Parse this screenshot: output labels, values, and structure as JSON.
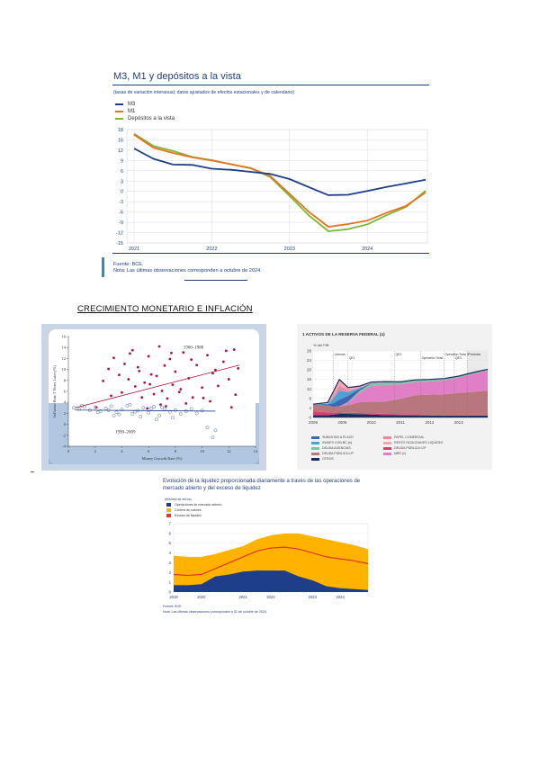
{
  "figure1": {
    "title": "M3, M1 y depósitos a la vista",
    "subtitle": "(tasas de variación interanual; datos ajustados de efectos estacionales y de calendario)",
    "legend": [
      {
        "label": "M3",
        "color": "#1f3e8a"
      },
      {
        "label": "M1",
        "color": "#e8731f"
      },
      {
        "label": "Depósitos a la vista",
        "color": "#7cb833"
      }
    ],
    "source": "Fuente: BCE.",
    "note": "Nota: Las últimas observaciones corresponden a octubre de 2024."
  },
  "section_heading": "CRECIMIENTO MONETARIO E INFLACIÓN",
  "figure2": {
    "annotation_upper": "1960–1980",
    "annotation_lower": "1990–2009"
  },
  "figure3": {
    "title": "1  ACTIVOS DE LA RESERVA FEDERAL (a)",
    "unit": "% del PIB",
    "event_labels": [
      "Lehman",
      "QE1",
      "QE2",
      "Operation Twist",
      "Operation Twist 2",
      "QE3",
      "Previsión"
    ],
    "legend": [
      {
        "label": "SUBASTAS A PLAZO",
        "color": "#3f66b0"
      },
      {
        "label": "PAPEL COMERCIAL",
        "color": "#e58aa0"
      },
      {
        "label": "SWAPS CON BC (b)",
        "color": "#4aa3d8"
      },
      {
        "label": "RESTO FACILIDADES LIQUIDEZ",
        "color": "#f1a9b7"
      },
      {
        "label": "DEUDA AGENCIAS",
        "color": "#7fc2a8"
      },
      {
        "label": "DEUDA PÚBLICA C/P",
        "color": "#d6406a"
      },
      {
        "label": "DEUDA PÚBLICA L/P",
        "color": "#b8767e"
      },
      {
        "label": "MBS (c)",
        "color": "#e07fc6"
      },
      {
        "label": "OTROS",
        "color": "#1c2b5e"
      }
    ]
  },
  "figure4": {
    "title_line1": "Evolución de la liquidez proporcionada diariamente a través de las operaciones de",
    "title_line2": "mercado abierto y del exceso de liquidez",
    "unit": "(billones de euros)",
    "legend": [
      {
        "label": "Operaciones de mercado abierto",
        "color": "#1f3e8a"
      },
      {
        "label": "Cartera de valores",
        "color": "#ffb300"
      },
      {
        "label": "Exceso de liquidez",
        "color": "#e8332a"
      }
    ],
    "source": "Fuente: BCE.",
    "note": "Nota: Las últimas observaciones corresponden a 31 de octubre de 2024."
  },
  "chart_data": [
    {
      "type": "line",
      "title": "M3, M1 y depósitos a la vista",
      "x": [
        "2021-01",
        "2021-04",
        "2021-07",
        "2021-10",
        "2022-01",
        "2022-04",
        "2022-07",
        "2022-10",
        "2023-01",
        "2023-04",
        "2023-07",
        "2023-10",
        "2024-01",
        "2024-04",
        "2024-07",
        "2024-10"
      ],
      "series": [
        {
          "name": "M3",
          "values": [
            12.5,
            9.5,
            7.8,
            7.7,
            6.6,
            6.3,
            5.7,
            5.1,
            3.6,
            1.2,
            -1.1,
            -1.0,
            0.1,
            1.3,
            2.3,
            3.4
          ]
        },
        {
          "name": "M1",
          "values": [
            16.5,
            12.7,
            11.2,
            9.9,
            9.0,
            7.9,
            6.8,
            4.5,
            -0.7,
            -6.0,
            -10.3,
            -9.5,
            -8.5,
            -6.2,
            -4.2,
            -0.3
          ]
        },
        {
          "name": "Depósitos a la vista",
          "values": [
            16.8,
            13.2,
            11.8,
            10.0,
            9.1,
            7.9,
            6.7,
            4.2,
            -1.3,
            -7.0,
            -11.6,
            -11.0,
            -9.6,
            -6.9,
            -4.5,
            0.2
          ]
        }
      ],
      "xticks": [
        "2021",
        "2022",
        "2023",
        "2024"
      ],
      "yticks": [
        18,
        15,
        12,
        9,
        6,
        3,
        0,
        -3,
        -6,
        -9,
        -12,
        -15
      ],
      "ylim": [
        -15,
        18
      ],
      "grid": true,
      "legend_position": "top-left"
    },
    {
      "type": "scatter",
      "xlabel": "Money Growth Rate (%)",
      "ylabel": "Inflation Rate 2 Years Later (%)",
      "xticks": [
        0,
        2,
        4,
        6,
        8,
        10,
        12,
        14
      ],
      "yticks": [
        -4,
        -2,
        0,
        2,
        4,
        6,
        8,
        10,
        12,
        14,
        16
      ],
      "xlim": [
        0,
        14
      ],
      "ylim": [
        -4,
        16
      ],
      "series": [
        {
          "name": "1960–1980",
          "color": "#b0123e",
          "x": [
            2.1,
            2.6,
            3.0,
            3.4,
            3.8,
            4.0,
            4.2,
            4.5,
            4.8,
            5.0,
            5.2,
            5.5,
            5.7,
            6.0,
            6.2,
            6.4,
            6.6,
            6.8,
            7.0,
            7.2,
            7.4,
            7.6,
            7.8,
            8.0,
            8.3,
            8.6,
            9.0,
            9.3,
            9.6,
            10.0,
            10.4,
            10.8,
            11.2,
            11.6,
            12.0,
            12.4,
            12.7,
            3.2,
            4.6,
            5.3,
            6.1,
            6.9,
            7.7,
            8.4,
            9.2,
            10.1,
            11.0,
            11.8,
            12.5,
            5.9,
            7.3,
            8.8,
            10.6,
            12.2
          ],
          "y": [
            3.1,
            7.9,
            10.1,
            12.1,
            9.0,
            5.8,
            11.0,
            8.2,
            13.5,
            6.9,
            10.4,
            4.9,
            7.6,
            12.4,
            9.1,
            5.5,
            8.8,
            14.2,
            6.1,
            10.7,
            4.7,
            11.9,
            7.2,
            9.6,
            5.9,
            13.1,
            8.4,
            4.9,
            10.8,
            6.7,
            12.6,
            9.3,
            7.0,
            11.4,
            8.2,
            13.6,
            10.2,
            5.2,
            12.9,
            9.7,
            7.3,
            3.6,
            13.0,
            6.4,
            11.8,
            4.8,
            9.9,
            13.4,
            5.4,
            2.9,
            3.3,
            3.8,
            4.2,
            3.1
          ]
        },
        {
          "name": "1990–2009",
          "color": "#6f8fb8",
          "x": [
            0.4,
            0.8,
            1.2,
            1.6,
            2.0,
            2.4,
            2.8,
            3.2,
            3.6,
            4.0,
            4.4,
            4.8,
            5.2,
            5.6,
            6.0,
            6.4,
            6.8,
            7.2,
            7.6,
            8.0,
            8.4,
            8.8,
            9.2,
            9.6,
            10.0,
            10.4,
            10.8,
            11.0,
            1.0,
            2.2,
            3.0,
            3.8,
            4.6,
            5.4,
            6.2,
            7.0,
            7.8,
            3.4,
            5.0,
            6.6
          ],
          "y": [
            3.0,
            2.8,
            3.2,
            2.6,
            3.1,
            2.4,
            2.9,
            3.3,
            2.2,
            2.7,
            3.4,
            1.9,
            2.5,
            3.0,
            2.1,
            3.2,
            1.6,
            2.8,
            2.3,
            2.6,
            1.9,
            2.4,
            2.8,
            2.0,
            2.5,
            -0.6,
            -2.4,
            -1.1,
            3.4,
            2.2,
            2.6,
            1.8,
            3.6,
            1.4,
            2.9,
            3.1,
            1.2,
            1.6,
            2.3,
            0.9
          ]
        }
      ]
    },
    {
      "type": "area",
      "title": "1  ACTIVOS DE LA RESERVA FEDERAL (a)",
      "ylabel": "% del PIB",
      "x": [
        2008.0,
        2008.5,
        2008.7,
        2008.9,
        2009.2,
        2009.6,
        2010.0,
        2010.5,
        2011.0,
        2011.5,
        2012.0,
        2012.5,
        2013.0,
        2013.5,
        2014.0
      ],
      "xticks": [
        "2008",
        "2009",
        "2010",
        "2011",
        "2012",
        "2013"
      ],
      "yticks": [
        0,
        4,
        8,
        12,
        16,
        20,
        24,
        28
      ],
      "ylim": [
        0,
        28
      ],
      "series": [
        {
          "name": "OTROS",
          "values": [
            1.0,
            1.0,
            1.2,
            1.5,
            1.5,
            1.4,
            1.2,
            1.0,
            0.9,
            0.9,
            0.8,
            0.8,
            0.8,
            0.8,
            0.8
          ]
        },
        {
          "name": "DEUDA PÚBLICA C/P",
          "values": [
            1.5,
            1.2,
            0.8,
            0.6,
            0.5,
            0.5,
            0.5,
            0.5,
            0.5,
            0.5,
            0.3,
            0.0,
            0.0,
            0.0,
            0.0
          ]
        },
        {
          "name": "DEUDA PÚBLICA L/P",
          "values": [
            3.0,
            2.8,
            2.5,
            2.5,
            3.2,
            4.5,
            5.0,
            5.2,
            6.5,
            8.0,
            8.5,
            9.0,
            9.5,
            10.0,
            10.5
          ]
        },
        {
          "name": "MBS (c)",
          "values": [
            0.0,
            0.0,
            0.0,
            0.0,
            1.0,
            4.0,
            6.5,
            7.0,
            6.0,
            5.5,
            5.5,
            5.8,
            6.5,
            7.5,
            8.5
          ]
        },
        {
          "name": "DEUDA AGENCIAS",
          "values": [
            0.0,
            0.0,
            0.0,
            0.1,
            0.4,
            0.9,
            1.1,
            1.1,
            0.9,
            0.8,
            0.7,
            0.6,
            0.5,
            0.5,
            0.4
          ]
        },
        {
          "name": "SUBASTAS A PLAZO",
          "values": [
            0.0,
            0.5,
            1.5,
            2.8,
            2.5,
            0.8,
            0.1,
            0.0,
            0.0,
            0.0,
            0.0,
            0.0,
            0.0,
            0.0,
            0.0
          ]
        },
        {
          "name": "SWAPS CON BC (b)",
          "values": [
            0.0,
            0.3,
            2.0,
            3.8,
            1.5,
            0.3,
            0.1,
            0.0,
            0.0,
            0.0,
            0.1,
            0.1,
            0.0,
            0.0,
            0.0
          ]
        },
        {
          "name": "PAPEL COMERCIAL",
          "values": [
            0.0,
            0.0,
            1.0,
            2.2,
            0.8,
            0.2,
            0.0,
            0.0,
            0.0,
            0.0,
            0.0,
            0.0,
            0.0,
            0.0,
            0.0
          ]
        },
        {
          "name": "RESTO FACILIDADES LIQUIDEZ",
          "values": [
            0.1,
            0.5,
            2.0,
            2.5,
            1.2,
            0.6,
            0.4,
            0.3,
            0.2,
            0.1,
            0.1,
            0.1,
            0.1,
            0.1,
            0.1
          ]
        }
      ],
      "event_lines": [
        "Lehman",
        "QE1",
        "QE2",
        "Operation Twist",
        "Operation Twist 2",
        "QE3",
        "Previsión"
      ]
    },
    {
      "type": "area",
      "title": "Evolución de la liquidez proporcionada diariamente a través de las operaciones de mercado abierto y del exceso de liquidez",
      "ylabel": "(billones de euros)",
      "x": [
        "2019",
        "2019-07",
        "2020",
        "2020-04",
        "2020-07",
        "2021",
        "2021-07",
        "2022",
        "2022-07",
        "2022-10",
        "2023",
        "2023-07",
        "2024",
        "2024-07",
        "2024-10"
      ],
      "xticks": [
        "2019",
        "2020",
        "2021",
        "2022",
        "2023",
        "2024"
      ],
      "yticks": [
        0,
        1,
        2,
        3,
        4,
        5,
        6,
        7
      ],
      "ylim": [
        0,
        7
      ],
      "series": [
        {
          "name": "Operaciones de mercado abierto",
          "values": [
            0.7,
            0.7,
            0.8,
            1.6,
            1.8,
            2.1,
            2.2,
            2.2,
            2.2,
            1.6,
            1.2,
            0.6,
            0.4,
            0.3,
            0.2
          ]
        },
        {
          "name": "Cartera de valores",
          "values": [
            3.7,
            3.6,
            3.6,
            3.9,
            4.3,
            4.7,
            5.4,
            5.8,
            6.0,
            6.0,
            5.7,
            5.4,
            5.1,
            4.8,
            4.4
          ]
        },
        {
          "name": "Exceso de liquidez",
          "values": [
            1.8,
            1.7,
            1.8,
            2.4,
            3.0,
            3.6,
            4.2,
            4.5,
            4.6,
            4.4,
            4.0,
            3.6,
            3.4,
            3.2,
            2.9
          ]
        }
      ]
    }
  ]
}
